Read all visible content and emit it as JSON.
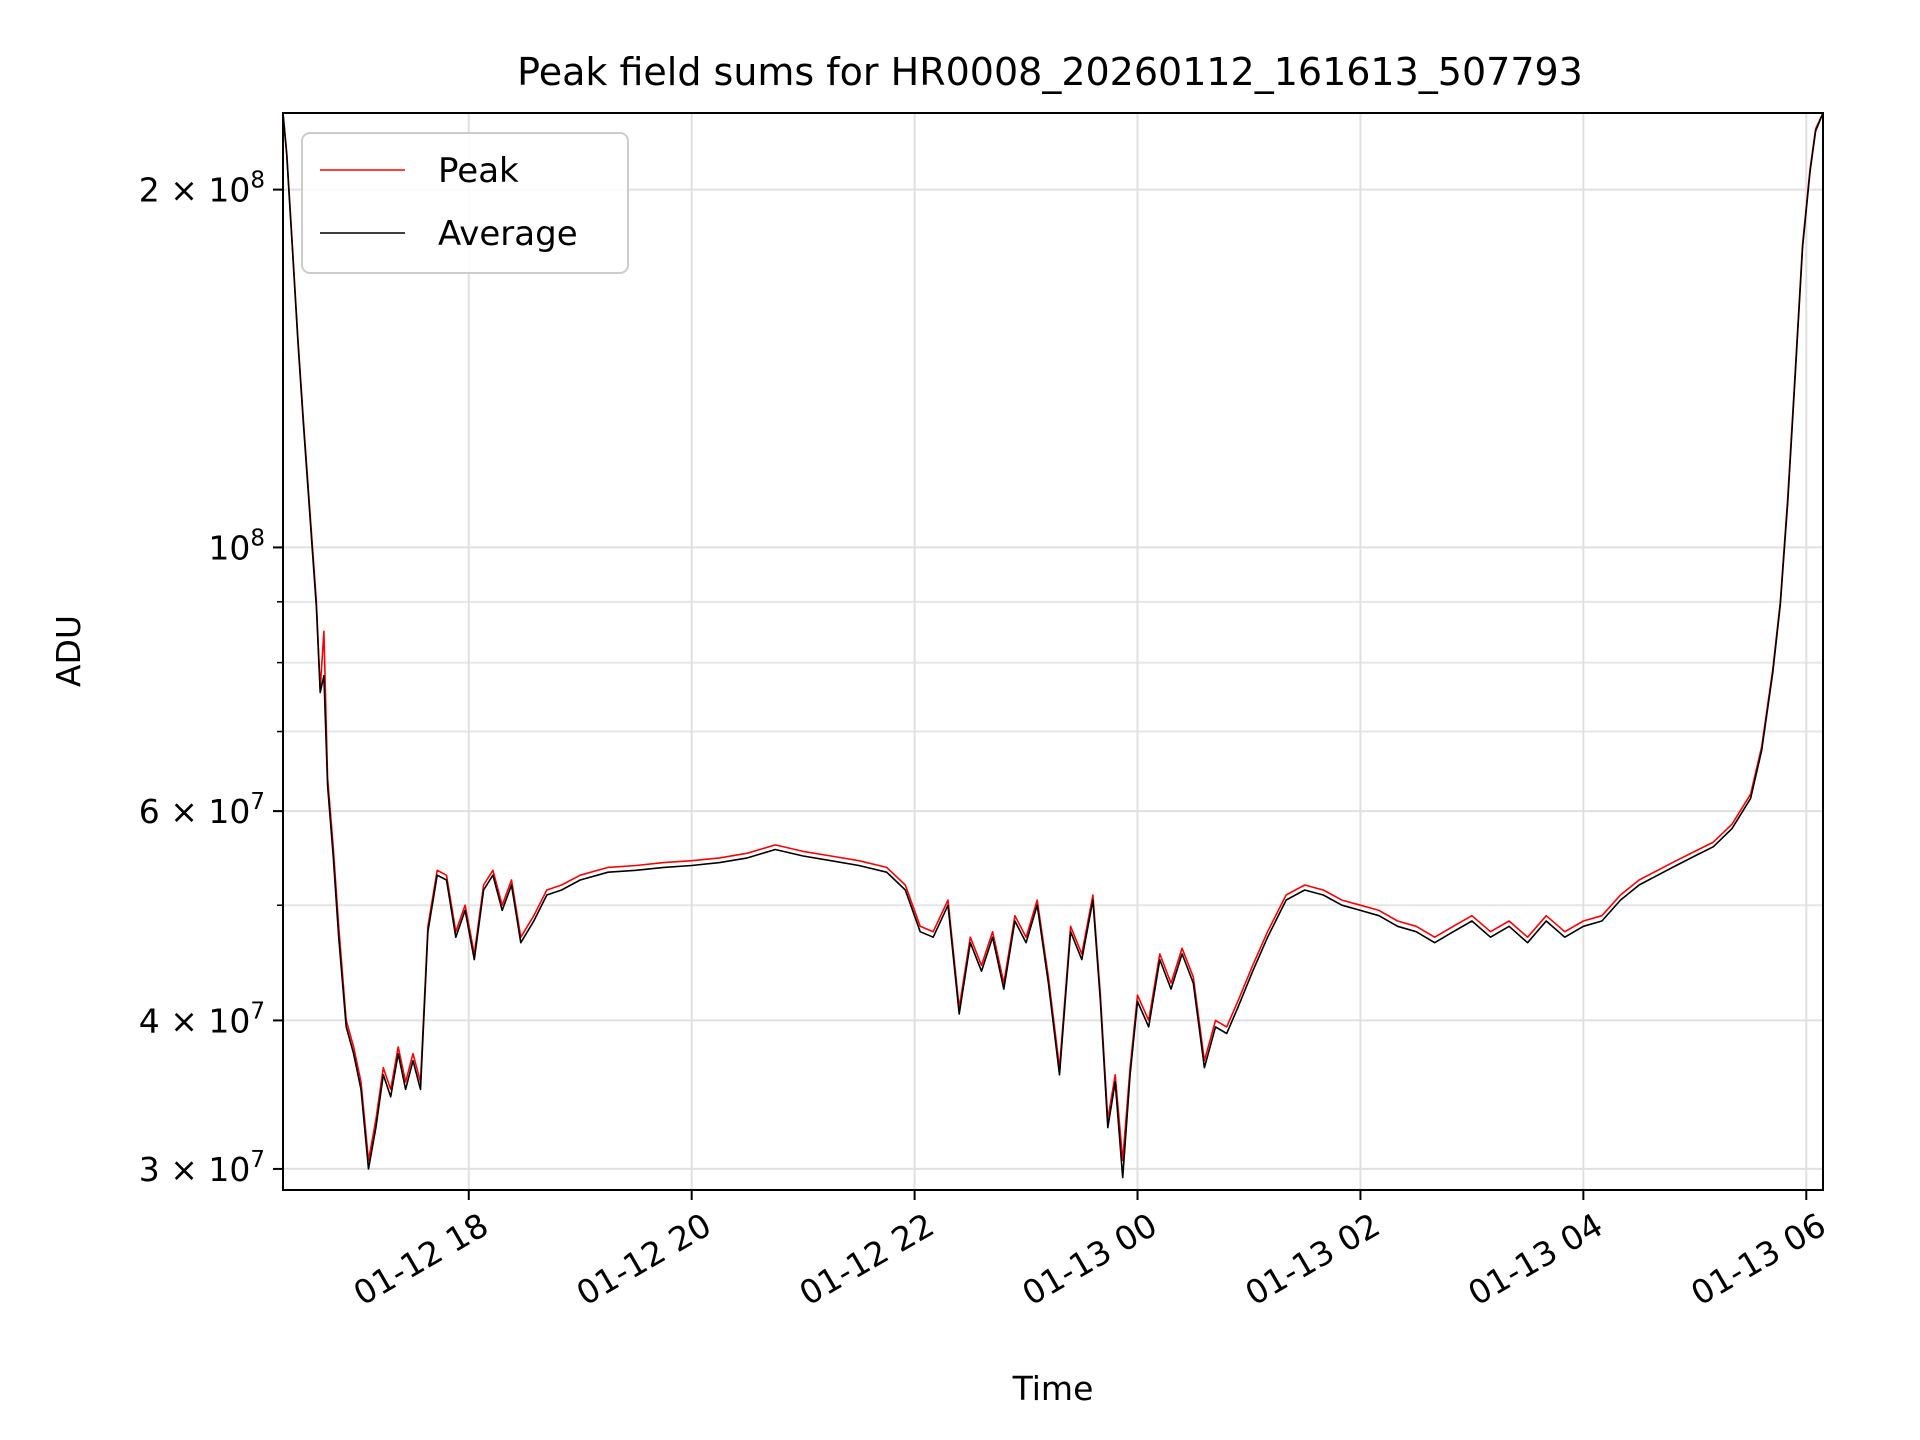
{
  "chart_data": {
    "type": "line",
    "title": "Peak field sums for HR0008_20260112_161613_507793",
    "xlabel": "Time",
    "ylabel": "ADU",
    "yscale": "log",
    "ylim": [
      28800000,
      232000000
    ],
    "xlim": [
      "01-12 16:20",
      "01-13 06:09"
    ],
    "grid": true,
    "legend": "upper left",
    "x_ticks": [
      "01-12 18",
      "01-12 20",
      "01-12 22",
      "01-13 00",
      "01-13 02",
      "01-13 04",
      "01-13 06"
    ],
    "y_ticks": [
      {
        "value": 30000000,
        "mantissa": "3",
        "exp": "7"
      },
      {
        "value": 40000000,
        "mantissa": "4",
        "exp": "7"
      },
      {
        "value": 60000000,
        "mantissa": "6",
        "exp": "7"
      },
      {
        "value": 100000000,
        "mantissa": "",
        "exp": "8"
      },
      {
        "value": 200000000,
        "mantissa": "2",
        "exp": "8"
      }
    ],
    "x_unit": "time (MM-DD HH:MM)",
    "series": [
      {
        "name": "Peak",
        "color": "#ff0000",
        "points": [
          [
            "01-12 16:20",
            232000000
          ],
          [
            "01-12 16:22",
            215000000
          ],
          [
            "01-12 16:25",
            180000000
          ],
          [
            "01-12 16:28",
            150000000
          ],
          [
            "01-12 16:31",
            128000000
          ],
          [
            "01-12 16:34",
            110000000
          ],
          [
            "01-12 16:38",
            90000000
          ],
          [
            "01-12 16:40",
            76000000
          ],
          [
            "01-12 16:42",
            85000000
          ],
          [
            "01-12 16:44",
            64000000
          ],
          [
            "01-12 16:47",
            56000000
          ],
          [
            "01-12 16:50",
            48000000
          ],
          [
            "01-12 16:54",
            40000000
          ],
          [
            "01-12 16:58",
            38000000
          ],
          [
            "01-12 17:02",
            35500000
          ],
          [
            "01-12 17:06",
            30500000
          ],
          [
            "01-12 17:10",
            33000000
          ],
          [
            "01-12 17:14",
            36500000
          ],
          [
            "01-12 17:18",
            35000000
          ],
          [
            "01-12 17:22",
            38000000
          ],
          [
            "01-12 17:26",
            35500000
          ],
          [
            "01-12 17:30",
            37500000
          ],
          [
            "01-12 17:34",
            35500000
          ],
          [
            "01-12 17:38",
            48000000
          ],
          [
            "01-12 17:43",
            53500000
          ],
          [
            "01-12 17:48",
            53000000
          ],
          [
            "01-12 17:53",
            47500000
          ],
          [
            "01-12 17:58",
            50000000
          ],
          [
            "01-12 18:03",
            45500000
          ],
          [
            "01-12 18:08",
            52000000
          ],
          [
            "01-12 18:13",
            53500000
          ],
          [
            "01-12 18:18",
            50000000
          ],
          [
            "01-12 18:23",
            52500000
          ],
          [
            "01-12 18:28",
            47000000
          ],
          [
            "01-12 18:35",
            49000000
          ],
          [
            "01-12 18:42",
            51500000
          ],
          [
            "01-12 18:50",
            52000000
          ],
          [
            "01-12 19:00",
            53000000
          ],
          [
            "01-12 19:15",
            53800000
          ],
          [
            "01-12 19:30",
            54000000
          ],
          [
            "01-12 19:45",
            54300000
          ],
          [
            "01-12 20:00",
            54500000
          ],
          [
            "01-12 20:15",
            54800000
          ],
          [
            "01-12 20:30",
            55300000
          ],
          [
            "01-12 20:45",
            56200000
          ],
          [
            "01-12 21:00",
            55500000
          ],
          [
            "01-12 21:15",
            55000000
          ],
          [
            "01-12 21:30",
            54500000
          ],
          [
            "01-12 21:45",
            53800000
          ],
          [
            "01-12 21:55",
            52000000
          ],
          [
            "01-12 22:03",
            48000000
          ],
          [
            "01-12 22:10",
            47500000
          ],
          [
            "01-12 22:18",
            50500000
          ],
          [
            "01-12 22:24",
            41000000
          ],
          [
            "01-12 22:30",
            47000000
          ],
          [
            "01-12 22:36",
            44500000
          ],
          [
            "01-12 22:42",
            47500000
          ],
          [
            "01-12 22:48",
            43000000
          ],
          [
            "01-12 22:54",
            49000000
          ],
          [
            "01-12 23:00",
            47000000
          ],
          [
            "01-12 23:06",
            50500000
          ],
          [
            "01-12 23:12",
            43500000
          ],
          [
            "01-12 23:18",
            36500000
          ],
          [
            "01-12 23:24",
            48000000
          ],
          [
            "01-12 23:30",
            45500000
          ],
          [
            "01-12 23:36",
            51000000
          ],
          [
            "01-12 23:40",
            42000000
          ],
          [
            "01-12 23:44",
            33000000
          ],
          [
            "01-12 23:48",
            36000000
          ],
          [
            "01-12 23:52",
            30500000
          ],
          [
            "01-12 23:56",
            36500000
          ],
          [
            "01-13 00:00",
            42000000
          ],
          [
            "01-13 00:06",
            40000000
          ],
          [
            "01-13 00:12",
            45500000
          ],
          [
            "01-13 00:18",
            43000000
          ],
          [
            "01-13 00:24",
            46000000
          ],
          [
            "01-13 00:30",
            43500000
          ],
          [
            "01-13 00:36",
            37000000
          ],
          [
            "01-13 00:42",
            40000000
          ],
          [
            "01-13 00:48",
            39500000
          ],
          [
            "01-13 00:54",
            41500000
          ],
          [
            "01-13 01:02",
            44500000
          ],
          [
            "01-13 01:10",
            47500000
          ],
          [
            "01-13 01:20",
            51000000
          ],
          [
            "01-13 01:30",
            52000000
          ],
          [
            "01-13 01:40",
            51500000
          ],
          [
            "01-13 01:50",
            50500000
          ],
          [
            "01-13 02:00",
            50000000
          ],
          [
            "01-13 02:10",
            49500000
          ],
          [
            "01-13 02:20",
            48500000
          ],
          [
            "01-13 02:30",
            48000000
          ],
          [
            "01-13 02:40",
            47000000
          ],
          [
            "01-13 02:50",
            48000000
          ],
          [
            "01-13 03:00",
            49000000
          ],
          [
            "01-13 03:10",
            47500000
          ],
          [
            "01-13 03:20",
            48500000
          ],
          [
            "01-13 03:30",
            47000000
          ],
          [
            "01-13 03:40",
            49000000
          ],
          [
            "01-13 03:50",
            47500000
          ],
          [
            "01-13 04:00",
            48500000
          ],
          [
            "01-13 04:10",
            49000000
          ],
          [
            "01-13 04:20",
            51000000
          ],
          [
            "01-13 04:30",
            52500000
          ],
          [
            "01-13 04:40",
            53500000
          ],
          [
            "01-13 04:50",
            54500000
          ],
          [
            "01-13 05:00",
            55500000
          ],
          [
            "01-13 05:10",
            56500000
          ],
          [
            "01-13 05:20",
            58500000
          ],
          [
            "01-13 05:30",
            62000000
          ],
          [
            "01-13 05:36",
            68000000
          ],
          [
            "01-13 05:42",
            79000000
          ],
          [
            "01-13 05:46",
            90000000
          ],
          [
            "01-13 05:50",
            110000000
          ],
          [
            "01-13 05:54",
            140000000
          ],
          [
            "01-13 05:58",
            180000000
          ],
          [
            "01-13 06:02",
            208000000
          ],
          [
            "01-13 06:05",
            225000000
          ],
          [
            "01-13 06:09",
            232000000
          ]
        ]
      },
      {
        "name": "Average",
        "color": "#000000",
        "points": [
          [
            "01-12 16:20",
            232000000
          ],
          [
            "01-12 16:22",
            214000000
          ],
          [
            "01-12 16:25",
            179000000
          ],
          [
            "01-12 16:28",
            149000000
          ],
          [
            "01-12 16:31",
            127000000
          ],
          [
            "01-12 16:34",
            109000000
          ],
          [
            "01-12 16:38",
            89000000
          ],
          [
            "01-12 16:40",
            75500000
          ],
          [
            "01-12 16:42",
            78000000
          ],
          [
            "01-12 16:44",
            63000000
          ],
          [
            "01-12 16:47",
            55000000
          ],
          [
            "01-12 16:50",
            47000000
          ],
          [
            "01-12 16:54",
            39500000
          ],
          [
            "01-12 16:58",
            37500000
          ],
          [
            "01-12 17:02",
            35000000
          ],
          [
            "01-12 17:06",
            30000000
          ],
          [
            "01-12 17:10",
            32500000
          ],
          [
            "01-12 17:14",
            36000000
          ],
          [
            "01-12 17:18",
            34500000
          ],
          [
            "01-12 17:22",
            37500000
          ],
          [
            "01-12 17:26",
            35000000
          ],
          [
            "01-12 17:30",
            37000000
          ],
          [
            "01-12 17:34",
            35000000
          ],
          [
            "01-12 17:38",
            47500000
          ],
          [
            "01-12 17:43",
            53000000
          ],
          [
            "01-12 17:48",
            52500000
          ],
          [
            "01-12 17:53",
            47000000
          ],
          [
            "01-12 17:58",
            49500000
          ],
          [
            "01-12 18:03",
            45000000
          ],
          [
            "01-12 18:08",
            51500000
          ],
          [
            "01-12 18:13",
            53000000
          ],
          [
            "01-12 18:18",
            49500000
          ],
          [
            "01-12 18:23",
            52000000
          ],
          [
            "01-12 18:28",
            46500000
          ],
          [
            "01-12 18:35",
            48500000
          ],
          [
            "01-12 18:42",
            51000000
          ],
          [
            "01-12 18:50",
            51500000
          ],
          [
            "01-12 19:00",
            52500000
          ],
          [
            "01-12 19:15",
            53300000
          ],
          [
            "01-12 19:30",
            53500000
          ],
          [
            "01-12 19:45",
            53800000
          ],
          [
            "01-12 20:00",
            54000000
          ],
          [
            "01-12 20:15",
            54300000
          ],
          [
            "01-12 20:30",
            54800000
          ],
          [
            "01-12 20:45",
            55700000
          ],
          [
            "01-12 21:00",
            55000000
          ],
          [
            "01-12 21:15",
            54500000
          ],
          [
            "01-12 21:30",
            54000000
          ],
          [
            "01-12 21:45",
            53300000
          ],
          [
            "01-12 21:55",
            51500000
          ],
          [
            "01-12 22:03",
            47500000
          ],
          [
            "01-12 22:10",
            47000000
          ],
          [
            "01-12 22:18",
            50000000
          ],
          [
            "01-12 22:24",
            40500000
          ],
          [
            "01-12 22:30",
            46500000
          ],
          [
            "01-12 22:36",
            44000000
          ],
          [
            "01-12 22:42",
            47000000
          ],
          [
            "01-12 22:48",
            42500000
          ],
          [
            "01-12 22:54",
            48500000
          ],
          [
            "01-12 23:00",
            46500000
          ],
          [
            "01-12 23:06",
            50000000
          ],
          [
            "01-12 23:12",
            43000000
          ],
          [
            "01-12 23:18",
            36000000
          ],
          [
            "01-12 23:24",
            47500000
          ],
          [
            "01-12 23:30",
            45000000
          ],
          [
            "01-12 23:36",
            50500000
          ],
          [
            "01-12 23:40",
            41500000
          ],
          [
            "01-12 23:44",
            32500000
          ],
          [
            "01-12 23:48",
            35500000
          ],
          [
            "01-12 23:52",
            29500000
          ],
          [
            "01-12 23:56",
            36000000
          ],
          [
            "01-13 00:00",
            41500000
          ],
          [
            "01-13 00:06",
            39500000
          ],
          [
            "01-13 00:12",
            45000000
          ],
          [
            "01-13 00:18",
            42500000
          ],
          [
            "01-13 00:24",
            45500000
          ],
          [
            "01-13 00:30",
            43000000
          ],
          [
            "01-13 00:36",
            36500000
          ],
          [
            "01-13 00:42",
            39500000
          ],
          [
            "01-13 00:48",
            39000000
          ],
          [
            "01-13 00:54",
            41000000
          ],
          [
            "01-13 01:02",
            44000000
          ],
          [
            "01-13 01:10",
            47000000
          ],
          [
            "01-13 01:20",
            50500000
          ],
          [
            "01-13 01:30",
            51500000
          ],
          [
            "01-13 01:40",
            51000000
          ],
          [
            "01-13 01:50",
            50000000
          ],
          [
            "01-13 02:00",
            49500000
          ],
          [
            "01-13 02:10",
            49000000
          ],
          [
            "01-13 02:20",
            48000000
          ],
          [
            "01-13 02:30",
            47500000
          ],
          [
            "01-13 02:40",
            46500000
          ],
          [
            "01-13 02:50",
            47500000
          ],
          [
            "01-13 03:00",
            48500000
          ],
          [
            "01-13 03:10",
            47000000
          ],
          [
            "01-13 03:20",
            48000000
          ],
          [
            "01-13 03:30",
            46500000
          ],
          [
            "01-13 03:40",
            48500000
          ],
          [
            "01-13 03:50",
            47000000
          ],
          [
            "01-13 04:00",
            48000000
          ],
          [
            "01-13 04:10",
            48500000
          ],
          [
            "01-13 04:20",
            50500000
          ],
          [
            "01-13 04:30",
            52000000
          ],
          [
            "01-13 04:40",
            53000000
          ],
          [
            "01-13 04:50",
            54000000
          ],
          [
            "01-13 05:00",
            55000000
          ],
          [
            "01-13 05:10",
            56000000
          ],
          [
            "01-13 05:20",
            58000000
          ],
          [
            "01-13 05:30",
            61500000
          ],
          [
            "01-13 05:36",
            67500000
          ],
          [
            "01-13 05:42",
            78500000
          ],
          [
            "01-13 05:46",
            89500000
          ],
          [
            "01-13 05:50",
            109000000
          ],
          [
            "01-13 05:54",
            139000000
          ],
          [
            "01-13 05:58",
            179000000
          ],
          [
            "01-13 06:02",
            207000000
          ],
          [
            "01-13 06:05",
            224000000
          ],
          [
            "01-13 06:09",
            232000000
          ]
        ]
      }
    ]
  }
}
